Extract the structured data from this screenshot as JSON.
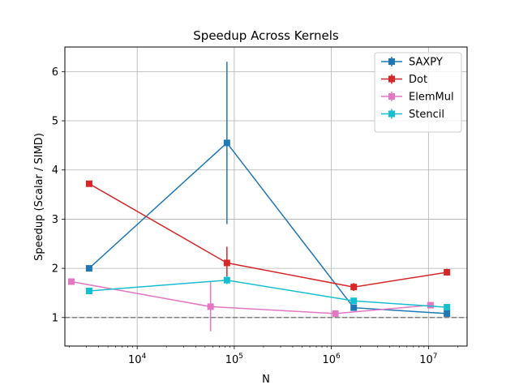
{
  "chart_data": {
    "type": "line",
    "title": "Speedup Across Kernels",
    "xlabel": "N",
    "ylabel": "Speedup (Scalar / SIMD)",
    "xscale": "log",
    "xlim": [
      1800,
      25000000
    ],
    "ylim": [
      0.42,
      6.5
    ],
    "x_ticks": [
      {
        "value": 10000,
        "base": "10",
        "exp": "4"
      },
      {
        "value": 100000,
        "base": "10",
        "exp": "5"
      },
      {
        "value": 1000000,
        "base": "10",
        "exp": "6"
      },
      {
        "value": 10000000,
        "base": "10",
        "exp": "7"
      }
    ],
    "y_ticks": [
      1,
      2,
      3,
      4,
      5,
      6
    ],
    "grid": true,
    "reference_line": {
      "y": 1,
      "style": "dashed",
      "color": "#808080"
    },
    "legend": {
      "position": "top-right"
    },
    "series": [
      {
        "name": "SAXPY",
        "color": "#1f77b4",
        "points": [
          {
            "x": 3200,
            "y": 2.0,
            "err": 0.05
          },
          {
            "x": 84000,
            "y": 4.55,
            "err": 1.65
          },
          {
            "x": 1700000,
            "y": 1.2,
            "err": 0.05
          },
          {
            "x": 15500000,
            "y": 1.08,
            "err": 0.03
          }
        ]
      },
      {
        "name": "Dot",
        "color": "#d62728",
        "points": [
          {
            "x": 3200,
            "y": 3.72,
            "err": 0.04
          },
          {
            "x": 84000,
            "y": 2.11,
            "err": 0.33
          },
          {
            "x": 1700000,
            "y": 1.62,
            "err": 0.08
          },
          {
            "x": 15500000,
            "y": 1.92,
            "err": 0.07
          }
        ]
      },
      {
        "name": "ElemMul",
        "color": "#e377c2",
        "points": [
          {
            "x": 2100,
            "y": 1.73,
            "err": 0.04
          },
          {
            "x": 57000,
            "y": 1.22,
            "err": 0.5
          },
          {
            "x": 1100000,
            "y": 1.08,
            "err": 0.04
          },
          {
            "x": 10500000,
            "y": 1.25,
            "err": 0.04
          }
        ]
      },
      {
        "name": "Stencil",
        "color": "#17becf",
        "points": [
          {
            "x": 3200,
            "y": 1.54,
            "err": 0.03
          },
          {
            "x": 84000,
            "y": 1.76,
            "err": 0.08
          },
          {
            "x": 1700000,
            "y": 1.34,
            "err": 0.06
          },
          {
            "x": 15500000,
            "y": 1.21,
            "err": 0.04
          }
        ]
      }
    ]
  }
}
